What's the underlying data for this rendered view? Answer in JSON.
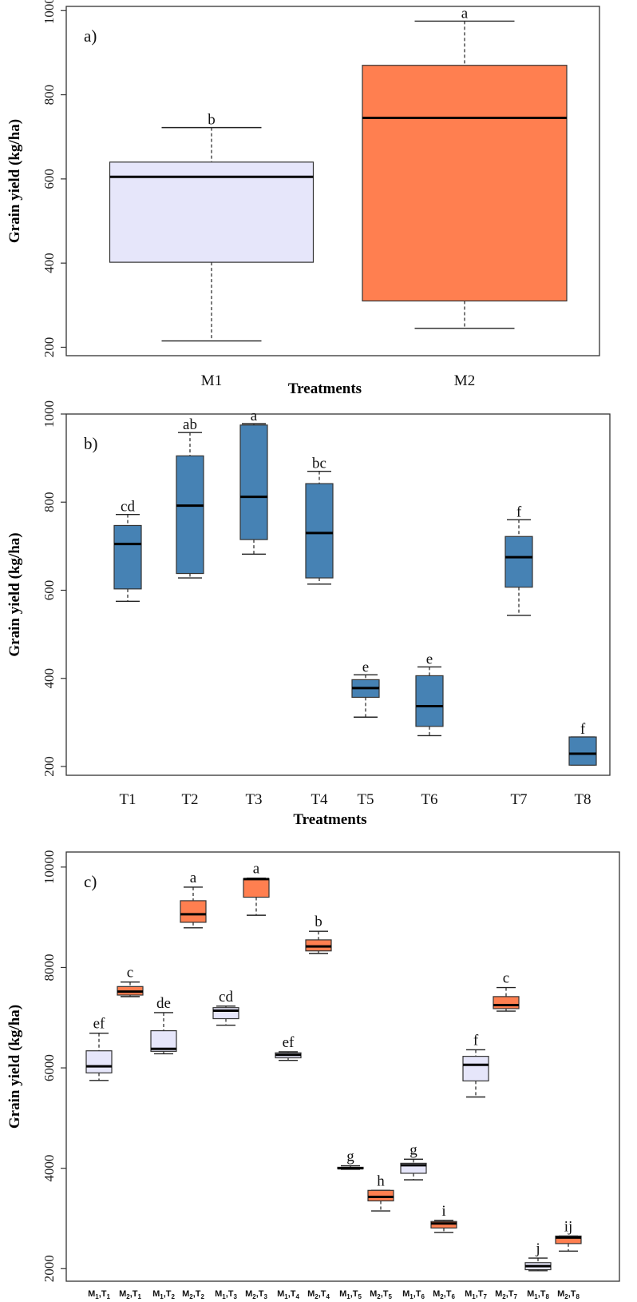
{
  "colors": {
    "lavender": "#E6E6FA",
    "coral": "#FF7F50",
    "steelblue": "#4682B4"
  },
  "chart_data": [
    {
      "type": "box",
      "panel_label": "a)",
      "xlabel": "Treatments",
      "ylabel": "Grain yield (kg/ha)",
      "ylim": [
        180,
        1010
      ],
      "yticks": [
        200,
        400,
        600,
        800,
        1000
      ],
      "categories": [
        "M1",
        "M2"
      ],
      "boxes": [
        {
          "name": "M1",
          "min": 215,
          "q1": 402,
          "median": 605,
          "q3": 640,
          "max": 722,
          "letter": "b",
          "color": "lavender"
        },
        {
          "name": "M2",
          "min": 245,
          "q1": 310,
          "median": 745,
          "q3": 870,
          "max": 975,
          "letter": "a",
          "color": "coral"
        }
      ]
    },
    {
      "type": "box",
      "panel_label": "b)",
      "xlabel": "Treatments",
      "ylabel": "Grain yield (kg/ha)",
      "ylim": [
        180,
        1000
      ],
      "yticks": [
        200,
        400,
        600,
        800,
        1000
      ],
      "categories": [
        "T1",
        "T2",
        "T3",
        "T4",
        "T5",
        "T6",
        "T7",
        "T8"
      ],
      "boxes": [
        {
          "name": "T1",
          "min": 575,
          "q1": 603,
          "median": 705,
          "q3": 747,
          "max": 772,
          "letter": "cd",
          "color": "steelblue"
        },
        {
          "name": "T2",
          "min": 628,
          "q1": 638,
          "median": 792,
          "q3": 905,
          "max": 958,
          "letter": "ab",
          "color": "steelblue"
        },
        {
          "name": "T3",
          "min": 682,
          "q1": 715,
          "median": 812,
          "q3": 975,
          "max": 978,
          "letter": "a",
          "color": "steelblue"
        },
        {
          "name": "T4",
          "min": 614,
          "q1": 628,
          "median": 730,
          "q3": 842,
          "max": 870,
          "letter": "bc",
          "color": "steelblue"
        },
        {
          "name": "T5",
          "min": 312,
          "q1": 357,
          "median": 378,
          "q3": 397,
          "max": 408,
          "letter": "e",
          "color": "steelblue"
        },
        {
          "name": "T6",
          "min": 270,
          "q1": 291,
          "median": 337,
          "q3": 406,
          "max": 426,
          "letter": "e",
          "color": "steelblue"
        },
        {
          "name": "T7",
          "min": 543,
          "q1": 607,
          "median": 675,
          "q3": 722,
          "max": 760,
          "letter": "f",
          "color": "steelblue"
        },
        {
          "name": "T8",
          "min": 203,
          "q1": 203,
          "median": 229,
          "q3": 267,
          "max": 267,
          "letter": "f",
          "color": "steelblue"
        }
      ]
    },
    {
      "type": "box",
      "panel_label": "c)",
      "xlabel": "",
      "ylabel": "Grain yield (kg/ha)",
      "ylim": [
        1750,
        10300
      ],
      "yticks": [
        2000,
        4000,
        6000,
        8000,
        10000
      ],
      "categories": [
        "M1,T1",
        "M2,T1",
        "M1,T2",
        "M2,T2",
        "M1,T3",
        "M2,T3",
        "M1,T4",
        "M2,T4",
        "M1,T5",
        "M2,T5",
        "M1,T6",
        "M2,T6",
        "M1,T7",
        "M2,T7",
        "M1,T8",
        "M2,T8"
      ],
      "boxes": [
        {
          "name": "M1,T1",
          "min": 5750,
          "q1": 5900,
          "median": 6030,
          "q3": 6340,
          "max": 6690,
          "letter": "ef",
          "color": "lavender"
        },
        {
          "name": "M2,T1",
          "min": 7420,
          "q1": 7450,
          "median": 7520,
          "q3": 7620,
          "max": 7710,
          "letter": "c",
          "color": "coral"
        },
        {
          "name": "M1,T2",
          "min": 6280,
          "q1": 6330,
          "median": 6380,
          "q3": 6740,
          "max": 7100,
          "letter": "de",
          "color": "lavender"
        },
        {
          "name": "M2,T2",
          "min": 8790,
          "q1": 8900,
          "median": 9060,
          "q3": 9330,
          "max": 9600,
          "letter": "a",
          "color": "coral"
        },
        {
          "name": "M1,T3",
          "min": 6850,
          "q1": 6980,
          "median": 7140,
          "q3": 7200,
          "max": 7230,
          "letter": "cd",
          "color": "lavender"
        },
        {
          "name": "M2,T3",
          "min": 9040,
          "q1": 9400,
          "median": 9760,
          "q3": 9770,
          "max": 9780,
          "letter": "a",
          "color": "coral"
        },
        {
          "name": "M1,T4",
          "min": 6150,
          "q1": 6200,
          "median": 6260,
          "q3": 6300,
          "max": 6320,
          "letter": "ef",
          "color": "lavender"
        },
        {
          "name": "M2,T4",
          "min": 8280,
          "q1": 8330,
          "median": 8420,
          "q3": 8550,
          "max": 8720,
          "letter": "b",
          "color": "coral"
        },
        {
          "name": "M1,T5",
          "min": 3980,
          "q1": 3990,
          "median": 4000,
          "q3": 4020,
          "max": 4050,
          "letter": "g",
          "color": "lavender"
        },
        {
          "name": "M2,T5",
          "min": 3150,
          "q1": 3350,
          "median": 3430,
          "q3": 3560,
          "max": 3560,
          "letter": "h",
          "color": "coral"
        },
        {
          "name": "M1,T6",
          "min": 3770,
          "q1": 3900,
          "median": 4060,
          "q3": 4100,
          "max": 4180,
          "letter": "g",
          "color": "lavender"
        },
        {
          "name": "M2,T6",
          "min": 2720,
          "q1": 2810,
          "median": 2900,
          "q3": 2940,
          "max": 2960,
          "letter": "i",
          "color": "coral"
        },
        {
          "name": "M1,T7",
          "min": 5420,
          "q1": 5740,
          "median": 6060,
          "q3": 6230,
          "max": 6360,
          "letter": "f",
          "color": "lavender"
        },
        {
          "name": "M2,T7",
          "min": 7130,
          "q1": 7180,
          "median": 7250,
          "q3": 7420,
          "max": 7600,
          "letter": "c",
          "color": "coral"
        },
        {
          "name": "M1,T8",
          "min": 1960,
          "q1": 1980,
          "median": 2050,
          "q3": 2120,
          "max": 2210,
          "letter": "j",
          "color": "lavender"
        },
        {
          "name": "M2,T8",
          "min": 2350,
          "q1": 2500,
          "median": 2620,
          "q3": 2650,
          "max": 2650,
          "letter": "ij",
          "color": "coral"
        }
      ]
    }
  ]
}
